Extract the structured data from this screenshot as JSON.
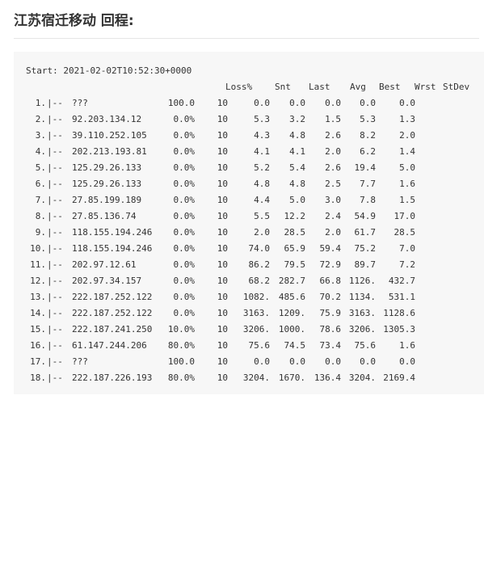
{
  "heading": "江苏宿迁移动 回程:",
  "start_line": "Start: 2021-02-02T10:52:30+0000",
  "columns": {
    "loss": "Loss%",
    "snt": "Snt",
    "last": "Last",
    "avg": "Avg",
    "best": "Best",
    "wrst": "Wrst",
    "stdev": "StDev"
  },
  "hops": [
    {
      "idx": "1.",
      "sep": "|--",
      "host": "???",
      "loss": "100.0",
      "snt": "10",
      "last": "0.0",
      "avg": "0.0",
      "best": "0.0",
      "wrst": "0.0",
      "stdev": "0.0"
    },
    {
      "idx": "2.",
      "sep": "|--",
      "host": "92.203.134.12",
      "loss": "0.0%",
      "snt": "10",
      "last": "5.3",
      "avg": "3.2",
      "best": "1.5",
      "wrst": "5.3",
      "stdev": "1.3"
    },
    {
      "idx": "3.",
      "sep": "|--",
      "host": "39.110.252.105",
      "loss": "0.0%",
      "snt": "10",
      "last": "4.3",
      "avg": "4.8",
      "best": "2.6",
      "wrst": "8.2",
      "stdev": "2.0"
    },
    {
      "idx": "4.",
      "sep": "|--",
      "host": "202.213.193.81",
      "loss": "0.0%",
      "snt": "10",
      "last": "4.1",
      "avg": "4.1",
      "best": "2.0",
      "wrst": "6.2",
      "stdev": "1.4"
    },
    {
      "idx": "5.",
      "sep": "|--",
      "host": "125.29.26.133",
      "loss": "0.0%",
      "snt": "10",
      "last": "5.2",
      "avg": "5.4",
      "best": "2.6",
      "wrst": "19.4",
      "stdev": "5.0"
    },
    {
      "idx": "6.",
      "sep": "|--",
      "host": "125.29.26.133",
      "loss": "0.0%",
      "snt": "10",
      "last": "4.8",
      "avg": "4.8",
      "best": "2.5",
      "wrst": "7.7",
      "stdev": "1.6"
    },
    {
      "idx": "7.",
      "sep": "|--",
      "host": "27.85.199.189",
      "loss": "0.0%",
      "snt": "10",
      "last": "4.4",
      "avg": "5.0",
      "best": "3.0",
      "wrst": "7.8",
      "stdev": "1.5"
    },
    {
      "idx": "8.",
      "sep": "|--",
      "host": "27.85.136.74",
      "loss": "0.0%",
      "snt": "10",
      "last": "5.5",
      "avg": "12.2",
      "best": "2.4",
      "wrst": "54.9",
      "stdev": "17.0"
    },
    {
      "idx": "9.",
      "sep": "|--",
      "host": "118.155.194.246",
      "loss": "0.0%",
      "snt": "10",
      "last": "2.0",
      "avg": "28.5",
      "best": "2.0",
      "wrst": "61.7",
      "stdev": "28.5"
    },
    {
      "idx": "10.",
      "sep": "|--",
      "host": "118.155.194.246",
      "loss": "0.0%",
      "snt": "10",
      "last": "74.0",
      "avg": "65.9",
      "best": "59.4",
      "wrst": "75.2",
      "stdev": "7.0"
    },
    {
      "idx": "11.",
      "sep": "|--",
      "host": "202.97.12.61",
      "loss": "0.0%",
      "snt": "10",
      "last": "86.2",
      "avg": "79.5",
      "best": "72.9",
      "wrst": "89.7",
      "stdev": "7.2"
    },
    {
      "idx": "12.",
      "sep": "|--",
      "host": "202.97.34.157",
      "loss": "0.0%",
      "snt": "10",
      "last": "68.2",
      "avg": "282.7",
      "best": "66.8",
      "wrst": "1126.",
      "stdev": "432.7"
    },
    {
      "idx": "13.",
      "sep": "|--",
      "host": "222.187.252.122",
      "loss": "0.0%",
      "snt": "10",
      "last": "1082.",
      "avg": "485.6",
      "best": "70.2",
      "wrst": "1134.",
      "stdev": "531.1"
    },
    {
      "idx": "14.",
      "sep": "|--",
      "host": "222.187.252.122",
      "loss": "0.0%",
      "snt": "10",
      "last": "3163.",
      "avg": "1209.",
      "best": "75.9",
      "wrst": "3163.",
      "stdev": "1128.6"
    },
    {
      "idx": "15.",
      "sep": "|--",
      "host": "222.187.241.250",
      "loss": "10.0%",
      "snt": "10",
      "last": "3206.",
      "avg": "1000.",
      "best": "78.6",
      "wrst": "3206.",
      "stdev": "1305.3"
    },
    {
      "idx": "16.",
      "sep": "|--",
      "host": "61.147.244.206",
      "loss": "80.0%",
      "snt": "10",
      "last": "75.6",
      "avg": "74.5",
      "best": "73.4",
      "wrst": "75.6",
      "stdev": "1.6"
    },
    {
      "idx": "17.",
      "sep": "|--",
      "host": "???",
      "loss": "100.0",
      "snt": "10",
      "last": "0.0",
      "avg": "0.0",
      "best": "0.0",
      "wrst": "0.0",
      "stdev": "0.0"
    },
    {
      "idx": "18.",
      "sep": "|--",
      "host": "222.187.226.193",
      "loss": "80.0%",
      "snt": "10",
      "last": "3204.",
      "avg": "1670.",
      "best": "136.4",
      "wrst": "3204.",
      "stdev": "2169.4"
    }
  ]
}
